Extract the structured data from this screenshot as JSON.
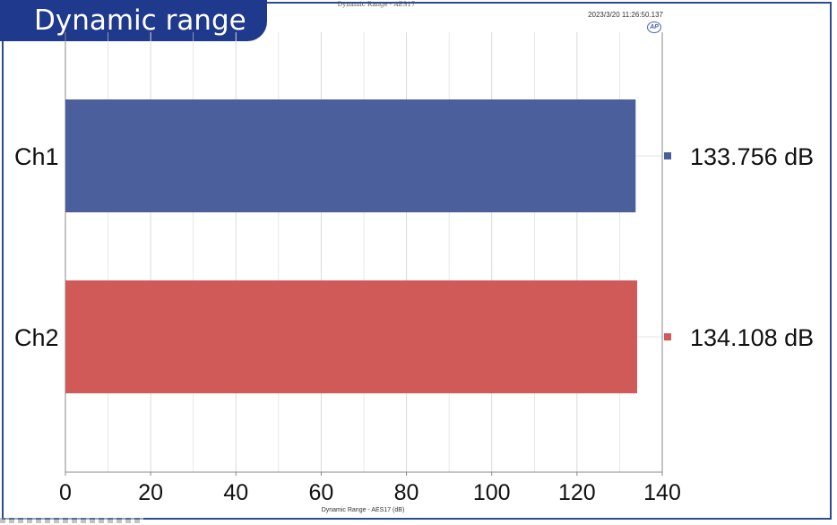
{
  "badge": {
    "label": "Dynamic range"
  },
  "header": {
    "chart_title": "Dynamic Range - AES17",
    "timestamp": "2023/3/20 11:26:50.137",
    "logo": "AP"
  },
  "colors": {
    "ch1": "#4a5f9b",
    "ch2": "#d05a57",
    "badge": "#1f3a8c",
    "grid": "#d9d9d9"
  },
  "chart_data": {
    "type": "bar",
    "orientation": "horizontal",
    "title": "Dynamic Range - AES17",
    "xlabel": "Dynamic Range - AES17 (dB)",
    "categories": [
      "Ch1",
      "Ch2"
    ],
    "values": [
      133.756,
      134.108
    ],
    "value_labels": [
      "133.756 dB",
      "134.108 dB"
    ],
    "xlim": [
      0,
      140
    ],
    "xticks": [
      0,
      20,
      40,
      60,
      80,
      100,
      120,
      140
    ],
    "grid": true,
    "legend": "right"
  }
}
